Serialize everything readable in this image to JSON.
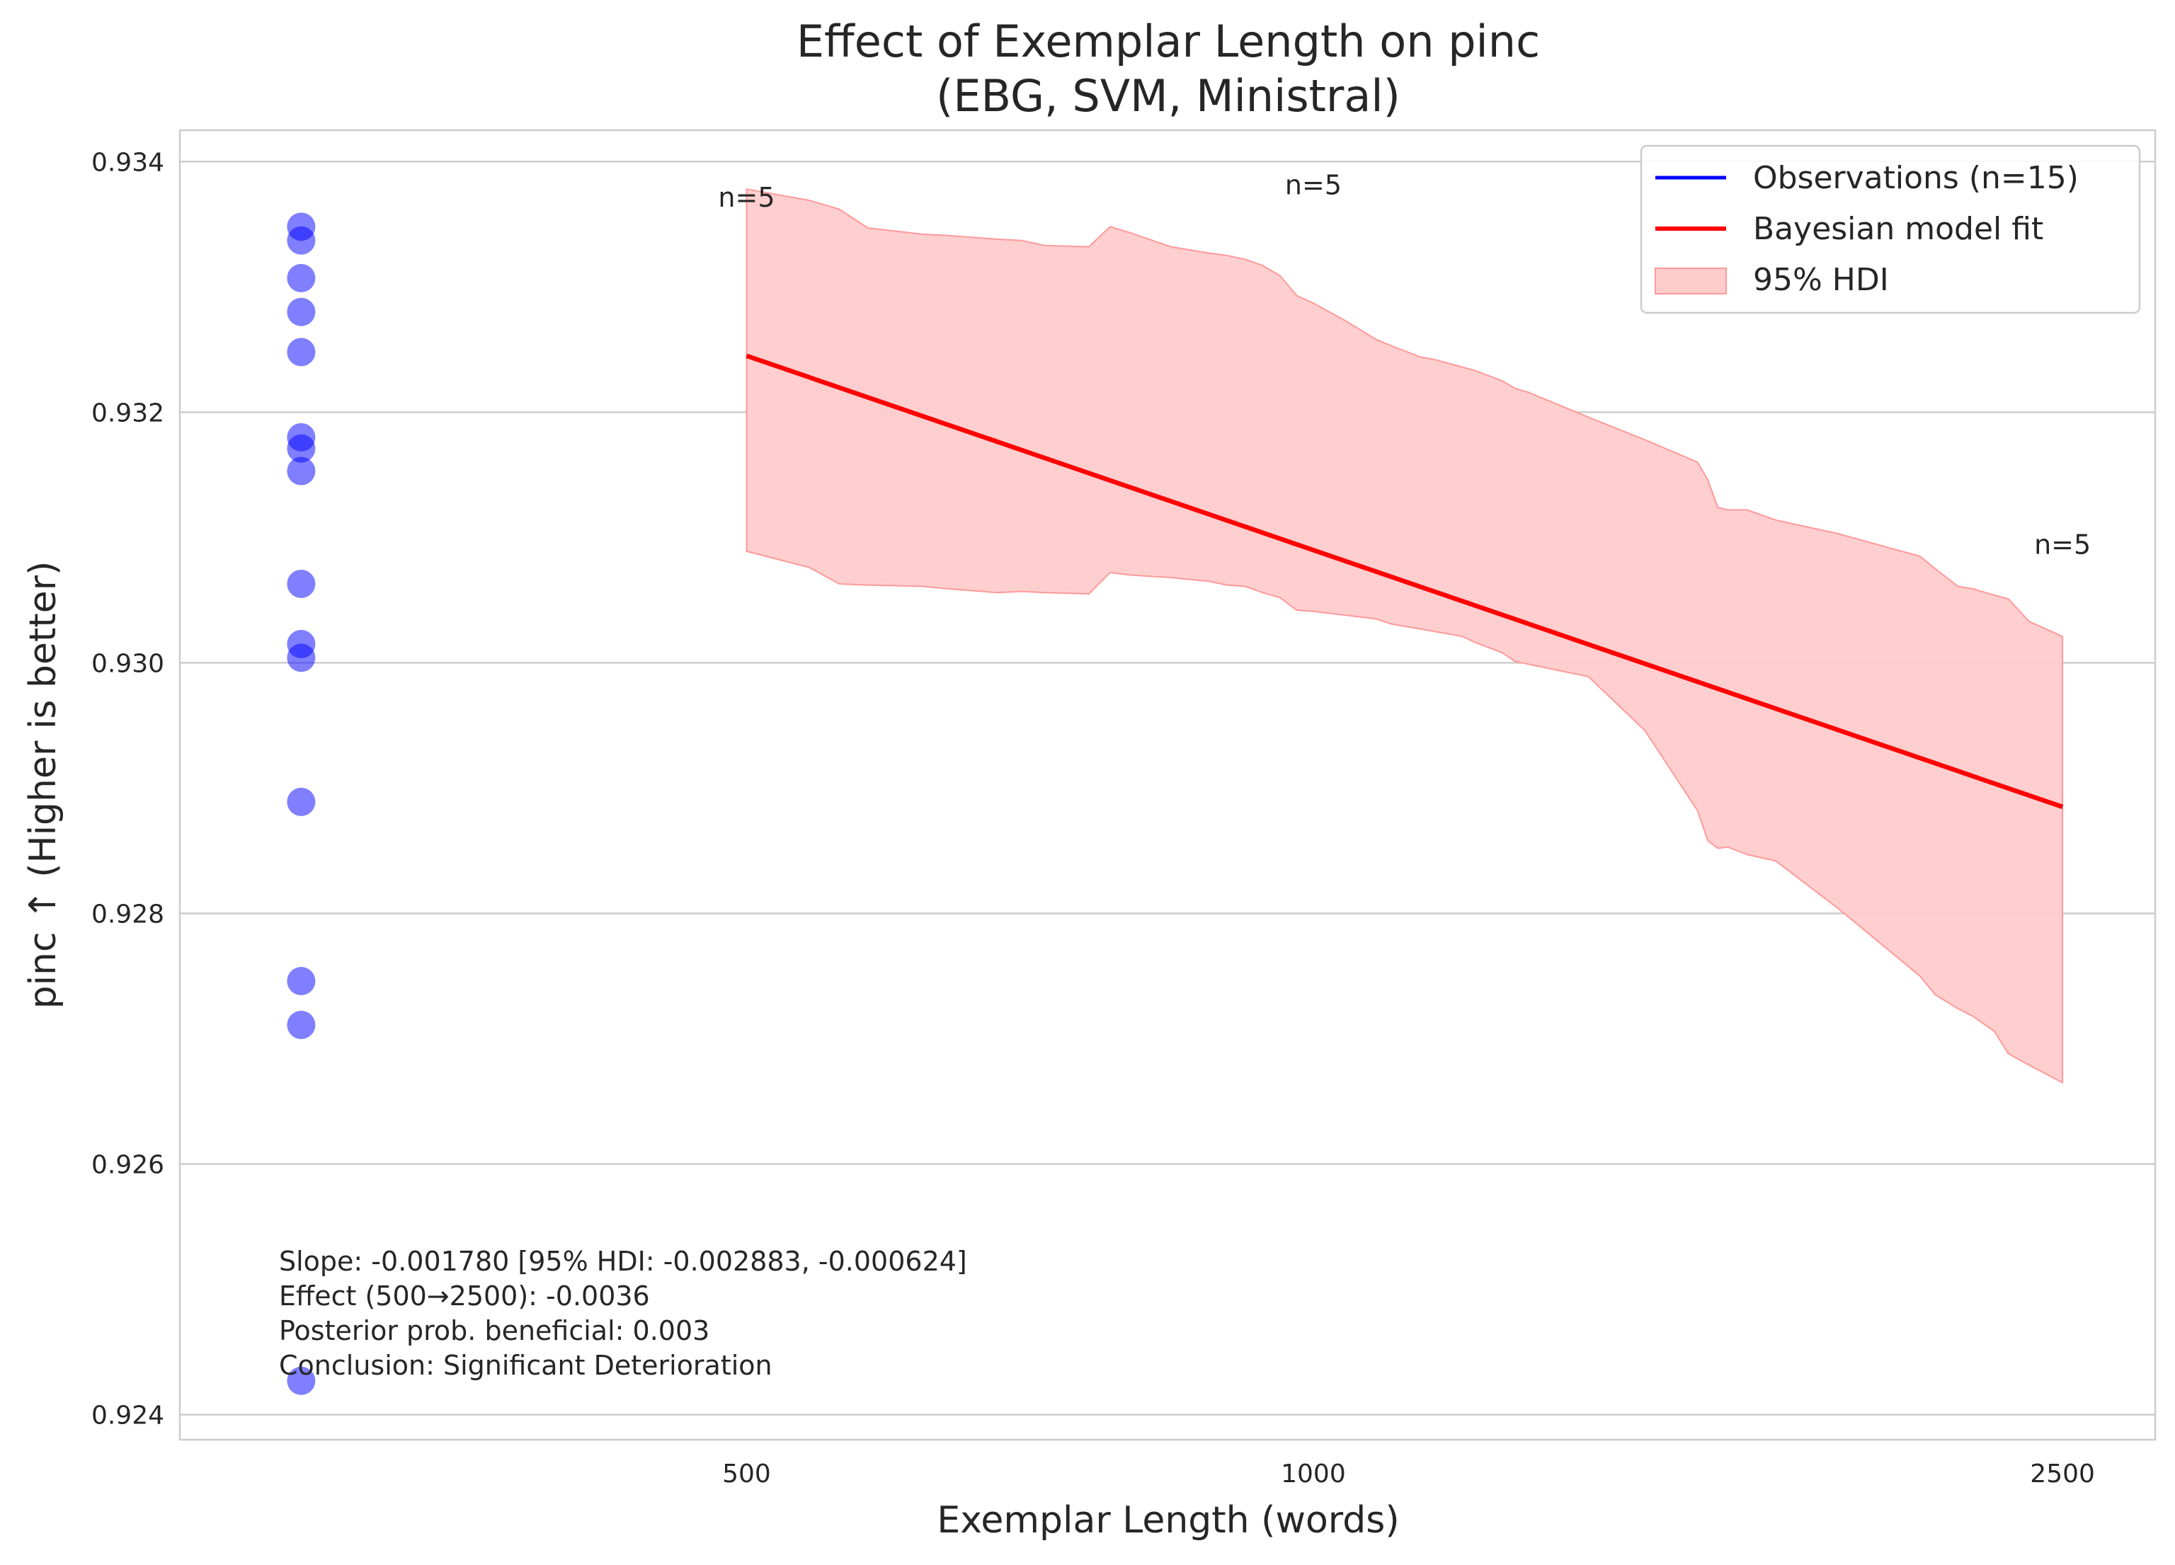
{
  "chart_data": {
    "type": "scatter",
    "title": "Effect of Exemplar Length on pinc",
    "subtitle": "(EBG, SVM, Ministral)",
    "xlabel": "Exemplar Length (words)",
    "ylabel": "pinc ↑ (Higher is better)",
    "xscale": "log",
    "xlim": [
      250,
      2800
    ],
    "ylim": [
      0.9238,
      0.93425
    ],
    "xticks": [
      500,
      1000,
      2500
    ],
    "xtick_labels": [
      "500",
      "1000",
      "2500"
    ],
    "yticks": [
      0.924,
      0.926,
      0.928,
      0.93,
      0.932,
      0.934
    ],
    "ytick_labels": [
      "0.924",
      "0.926",
      "0.928",
      "0.930",
      "0.932",
      "0.934"
    ],
    "grid": "horizontal",
    "legend_position": "top-right",
    "legend": [
      {
        "label": "Observations (n=15)",
        "kind": "line",
        "color": "#0000ff"
      },
      {
        "label": "Bayesian model fit",
        "kind": "line",
        "color": "#ff0000"
      },
      {
        "label": "95% HDI",
        "kind": "patch",
        "color": "#ffcccc"
      }
    ],
    "observations": {
      "x": 290,
      "y": [
        0.93348,
        0.93337,
        0.93307,
        0.9328,
        0.93248,
        0.9318,
        0.93171,
        0.93153,
        0.93063,
        0.93015,
        0.93004,
        0.92889,
        0.92746,
        0.92711,
        0.92427
      ],
      "color": "#0000ff"
    },
    "model_fit": {
      "x": [
        500,
        2500
      ],
      "y": [
        0.93245,
        0.92885
      ],
      "color": "#ff0000"
    },
    "hdi": {
      "x": [
        500,
        540,
        560,
        580,
        620,
        640,
        680,
        700,
        720,
        760,
        780,
        800,
        840,
        880,
        900,
        920,
        940,
        960,
        980,
        1000,
        1040,
        1080,
        1100,
        1140,
        1160,
        1200,
        1220,
        1260,
        1280,
        1300,
        1400,
        1500,
        1600,
        1620,
        1640,
        1660,
        1700,
        1760,
        1900,
        2100,
        2140,
        2200,
        2240,
        2300,
        2340,
        2400,
        2500
      ],
      "upper": [
        0.93378,
        0.93369,
        0.93362,
        0.93347,
        0.93342,
        0.93341,
        0.93338,
        0.93337,
        0.93333,
        0.93332,
        0.93348,
        0.93343,
        0.93332,
        0.93327,
        0.93325,
        0.93322,
        0.93317,
        0.93309,
        0.93293,
        0.93287,
        0.93273,
        0.93258,
        0.93253,
        0.93244,
        0.93242,
        0.93236,
        0.93233,
        0.93225,
        0.93219,
        0.93216,
        0.93196,
        0.93178,
        0.9316,
        0.93146,
        0.93124,
        0.93122,
        0.93122,
        0.93114,
        0.93103,
        0.93085,
        0.93075,
        0.93061,
        0.93059,
        0.93054,
        0.93051,
        0.93033,
        0.93021
      ],
      "lower": [
        0.93089,
        0.93076,
        0.93063,
        0.93062,
        0.93061,
        0.93059,
        0.93056,
        0.93057,
        0.93056,
        0.93055,
        0.93072,
        0.9307,
        0.93068,
        0.93065,
        0.93062,
        0.93061,
        0.93056,
        0.93052,
        0.93042,
        0.93041,
        0.93038,
        0.93035,
        0.93031,
        0.93027,
        0.93025,
        0.93021,
        0.93016,
        0.93008,
        0.93001,
        0.92999,
        0.92989,
        0.92946,
        0.92882,
        0.92858,
        0.92852,
        0.92853,
        0.92847,
        0.92842,
        0.92804,
        0.9275,
        0.92735,
        0.92724,
        0.92718,
        0.92706,
        0.92688,
        0.92679,
        0.92665
      ],
      "color": "#ffcccc",
      "edge_color": "#ff9999"
    },
    "annotations": [
      {
        "text": "n=5",
        "x": 500,
        "y": 0.93364
      },
      {
        "text": "n=5",
        "x": 1000,
        "y": 0.93374
      },
      {
        "text": "n=5",
        "x": 2500,
        "y": 0.93087
      }
    ],
    "stats_box": {
      "lines": [
        "Slope: -0.001780 [95% HDI: -0.002883, -0.000624]",
        "Effect (500→2500): -0.0036",
        "Posterior prob. beneficial: 0.003",
        "Conclusion: Significant Deterioration"
      ]
    },
    "colors": {
      "axes_edge": "#cccccc",
      "grid": "#cccccc",
      "text": "#262626"
    }
  }
}
